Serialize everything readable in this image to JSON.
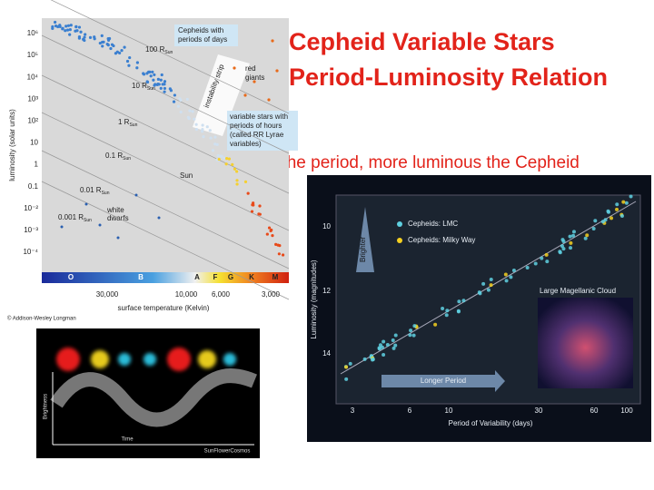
{
  "title": [
    "Cepheid Variable Stars",
    "Period-Luminosity Relation"
  ],
  "subtitle": "Longer the period, more luminous the Cepheid",
  "hr_diagram": {
    "y_label": "luminosity (solar units)",
    "y_ticks": [
      "10⁶",
      "10⁵",
      "10⁴",
      "10³",
      "10²",
      "10",
      "1",
      "0.1",
      "10⁻²",
      "10⁻³",
      "10⁻⁴"
    ],
    "x_label": "surface temperature (Kelvin)",
    "x_ticks": [
      "30,000",
      "10,000",
      "6,000",
      "3,000"
    ],
    "spectral_types": [
      "O",
      "B",
      "A",
      "F",
      "G",
      "K",
      "M"
    ],
    "radius_labels": [
      "100 R",
      "10 R",
      "1 R",
      "0.1 R",
      "0.01 R",
      "0.001 R"
    ],
    "radius_subscript": "Sun",
    "cepheid_note": [
      "Cepheids with",
      "periods of days"
    ],
    "strip_label": "instability strip",
    "red_giants": [
      "red",
      "giants"
    ],
    "rr_lyrae_note": [
      "variable stars with",
      "periods of hours",
      "(called RR Lyrae",
      "variables)"
    ],
    "sun_label": "Sun",
    "white_dwarfs": [
      "white",
      "dwarfs"
    ],
    "credit": "© Addison-Wesley Longman"
  },
  "light_curve": {
    "y_label": "Brightness",
    "x_label": "Time",
    "credit": "SunFlowerCosmos"
  },
  "period_luminosity": {
    "legend": [
      "Cepheids: LMC",
      "Cepheids: Milky Way"
    ],
    "y_label": "Luminosity (magnitudes)",
    "y_ticks": [
      "10",
      "12",
      "14"
    ],
    "x_label": "Period of Variability (days)",
    "x_ticks": [
      "3",
      "6",
      "10",
      "30",
      "60",
      "100"
    ],
    "brighter": "Brighter",
    "longer_period": "Longer Period",
    "galaxy_label": "Large Magellanic Cloud"
  }
}
